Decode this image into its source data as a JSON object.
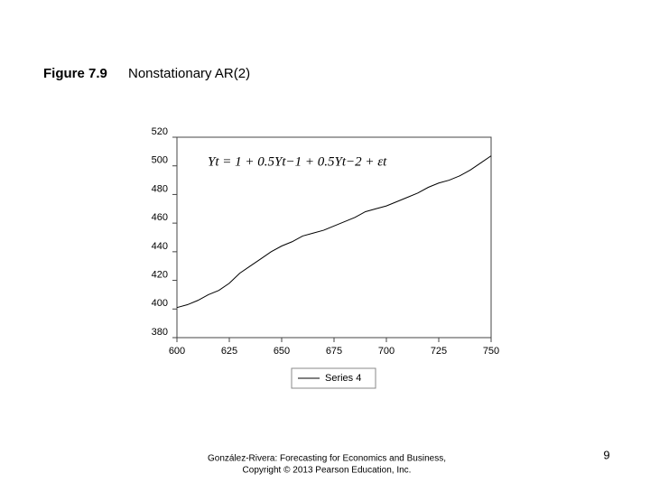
{
  "slide": {
    "figure_label": "Figure 7.9",
    "title": "Nonstationary AR(2)"
  },
  "chart_data": {
    "type": "line",
    "annotation": "Yt = 1 + 0.5Yt−1 + 0.5Yt−2 + εt",
    "x": [
      600,
      605,
      610,
      615,
      620,
      625,
      630,
      635,
      640,
      645,
      650,
      655,
      660,
      665,
      670,
      675,
      680,
      685,
      690,
      695,
      700,
      705,
      710,
      715,
      720,
      725,
      730,
      735,
      740,
      745,
      750
    ],
    "series": [
      {
        "name": "Series 4",
        "color": "#000000",
        "values": [
          401,
          403,
          406,
          410,
          413,
          418,
          425,
          430,
          435,
          440,
          444,
          447,
          451,
          453,
          455,
          458,
          461,
          464,
          468,
          470,
          472,
          475,
          478,
          481,
          485,
          488,
          490,
          493,
          497,
          502,
          507
        ]
      }
    ],
    "xlim": [
      600,
      750
    ],
    "xticks": [
      600,
      625,
      650,
      675,
      700,
      725,
      750
    ],
    "ylim": [
      380,
      520
    ],
    "yticks": [
      380,
      400,
      420,
      440,
      460,
      480,
      500,
      520
    ],
    "grid": false,
    "legend": "bottom"
  },
  "footer": {
    "citation": [
      "González-Rivera: Forecasting for Economics and Business,",
      "Copyright © 2013 Pearson Education, Inc."
    ],
    "page": "9"
  }
}
